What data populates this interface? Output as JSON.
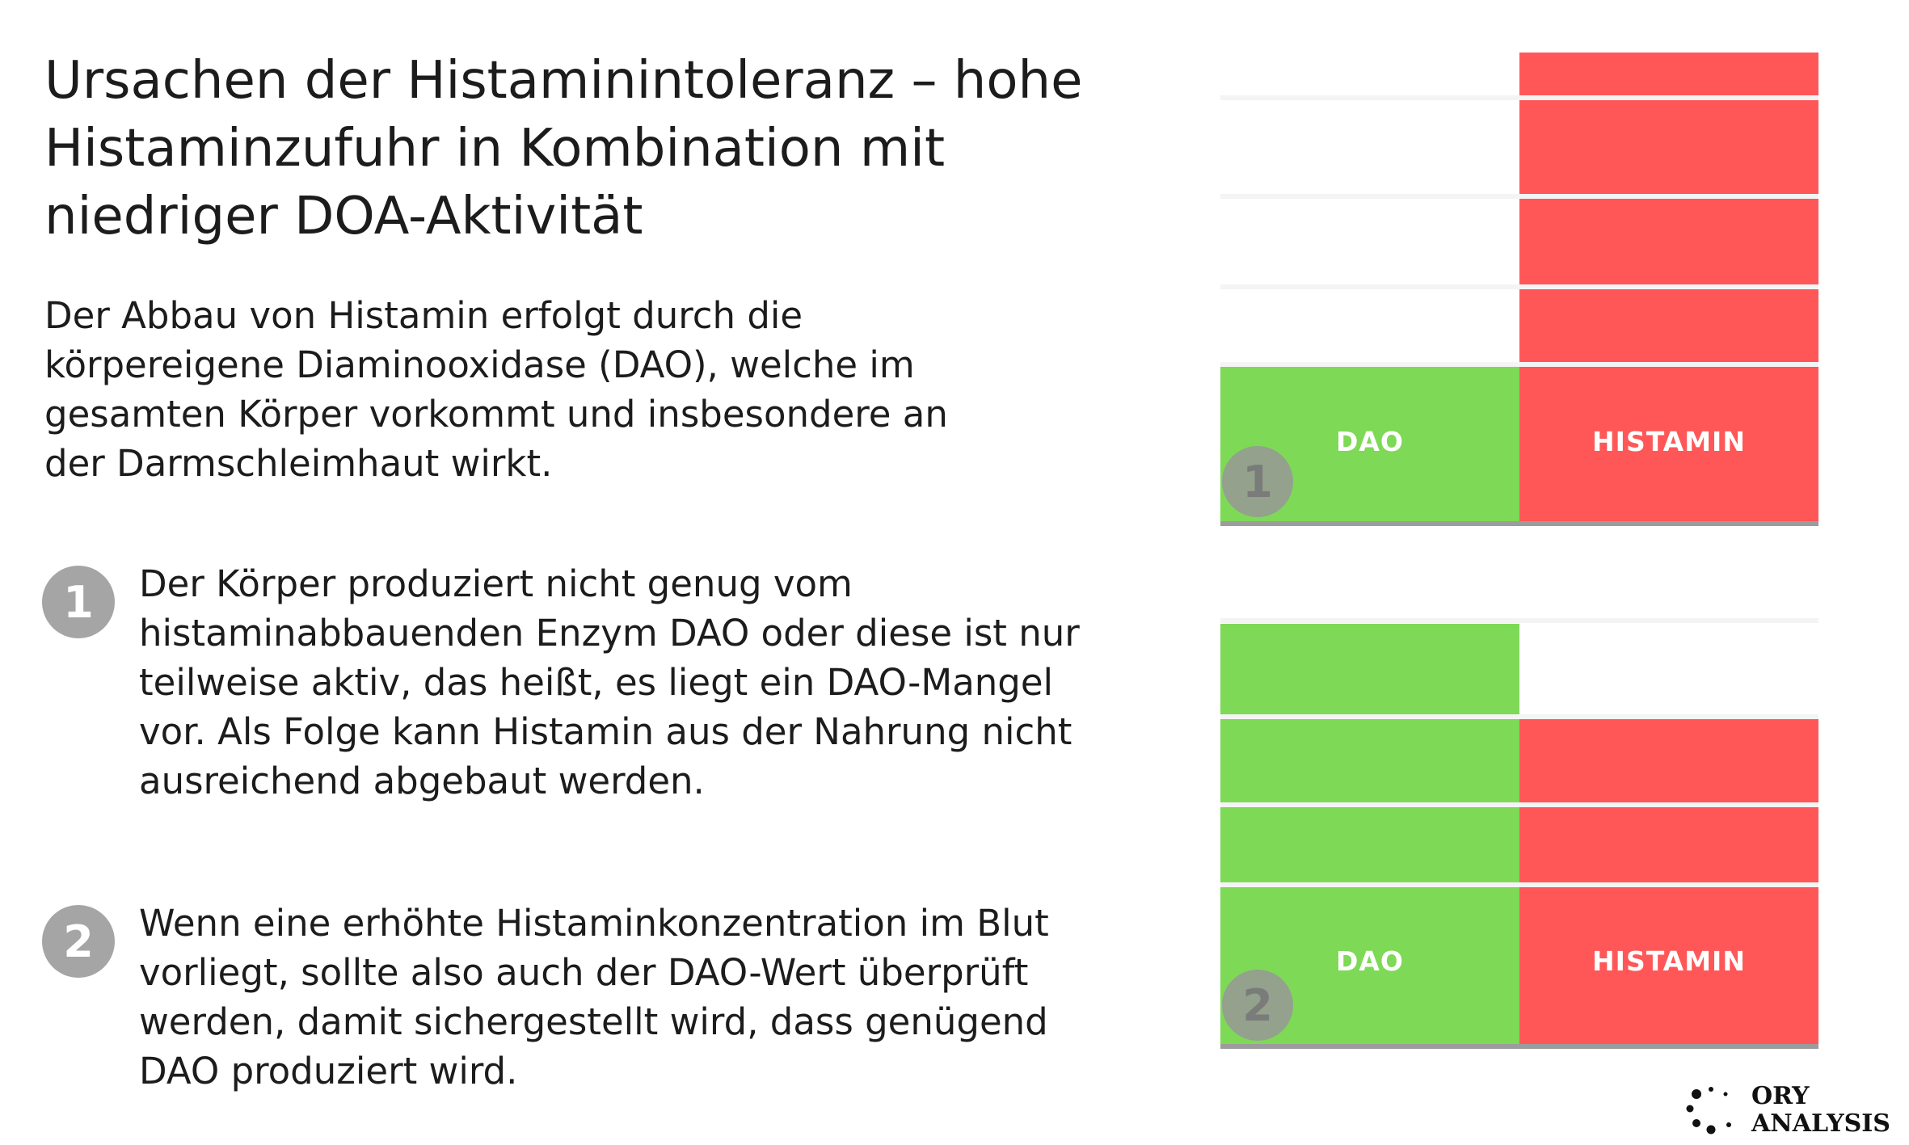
{
  "title": "Ursachen der Histaminintoleranz – hohe Histaminzufuhr in Kombination mit niedriger DOA-Aktivität",
  "intro": "Der Abbau von Histamin erfolgt durch die körpereigene Diaminooxidase (DAO), welche im gesamten Körper vorkommt und insbesondere an der Darmschleimhaut wirkt.",
  "items": [
    {
      "number": "1",
      "text": "Der Körper produziert nicht genug vom histaminabbauenden Enzym DAO oder diese ist nur teilweise aktiv, das heißt, es liegt ein DAO-Mangel vor. Als Folge kann Histamin aus der Nahrung nicht ausreichend abgebaut werden."
    },
    {
      "number": "2",
      "text": "Wenn eine erhöhte Histaminkonzentration im Blut vorliegt, sollte also auch der DAO-Wert überprüft werden, damit sichergestellt wird, dass genügend DAO  produziert wird."
    }
  ],
  "diagrams": [
    {
      "badge": "1",
      "dao_label": "DAO",
      "histamin_label": "HISTAMIN",
      "dao_level": 1,
      "histamin_level": 5
    },
    {
      "badge": "2",
      "dao_label": "DAO",
      "histamin_label": "HISTAMIN",
      "dao_level": 4,
      "histamin_level": 3
    }
  ],
  "colors": {
    "dao": "#7ed957",
    "histamin": "#ff5757",
    "badge": "#a5a5a5"
  },
  "logo": {
    "line1": "ORY",
    "line2": "ANALYSIS"
  }
}
